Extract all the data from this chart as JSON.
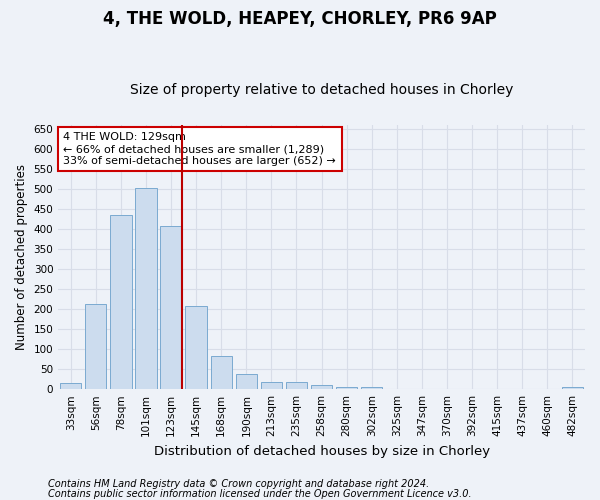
{
  "title": "4, THE WOLD, HEAPEY, CHORLEY, PR6 9AP",
  "subtitle": "Size of property relative to detached houses in Chorley",
  "xlabel": "Distribution of detached houses by size in Chorley",
  "ylabel": "Number of detached properties",
  "categories": [
    "33sqm",
    "56sqm",
    "78sqm",
    "101sqm",
    "123sqm",
    "145sqm",
    "168sqm",
    "190sqm",
    "213sqm",
    "235sqm",
    "258sqm",
    "280sqm",
    "302sqm",
    "325sqm",
    "347sqm",
    "370sqm",
    "392sqm",
    "415sqm",
    "437sqm",
    "460sqm",
    "482sqm"
  ],
  "values": [
    15,
    212,
    435,
    502,
    408,
    207,
    84,
    38,
    18,
    18,
    11,
    6,
    5,
    1,
    1,
    1,
    1,
    0,
    0,
    0,
    5
  ],
  "bar_color": "#ccdcee",
  "bar_edge_color": "#7aaad0",
  "vline_x_index": 4,
  "vline_color": "#bb0000",
  "ylim": [
    0,
    660
  ],
  "yticks": [
    0,
    50,
    100,
    150,
    200,
    250,
    300,
    350,
    400,
    450,
    500,
    550,
    600,
    650
  ],
  "annotation_text": "4 THE WOLD: 129sqm\n← 66% of detached houses are smaller (1,289)\n33% of semi-detached houses are larger (652) →",
  "annotation_box_facecolor": "#ffffff",
  "annotation_box_edgecolor": "#cc0000",
  "footnote1": "Contains HM Land Registry data © Crown copyright and database right 2024.",
  "footnote2": "Contains public sector information licensed under the Open Government Licence v3.0.",
  "background_color": "#eef2f8",
  "grid_color": "#d8dde8",
  "title_fontsize": 12,
  "subtitle_fontsize": 10,
  "xlabel_fontsize": 9.5,
  "ylabel_fontsize": 8.5,
  "tick_fontsize": 7.5,
  "annotation_fontsize": 8,
  "footnote_fontsize": 7
}
